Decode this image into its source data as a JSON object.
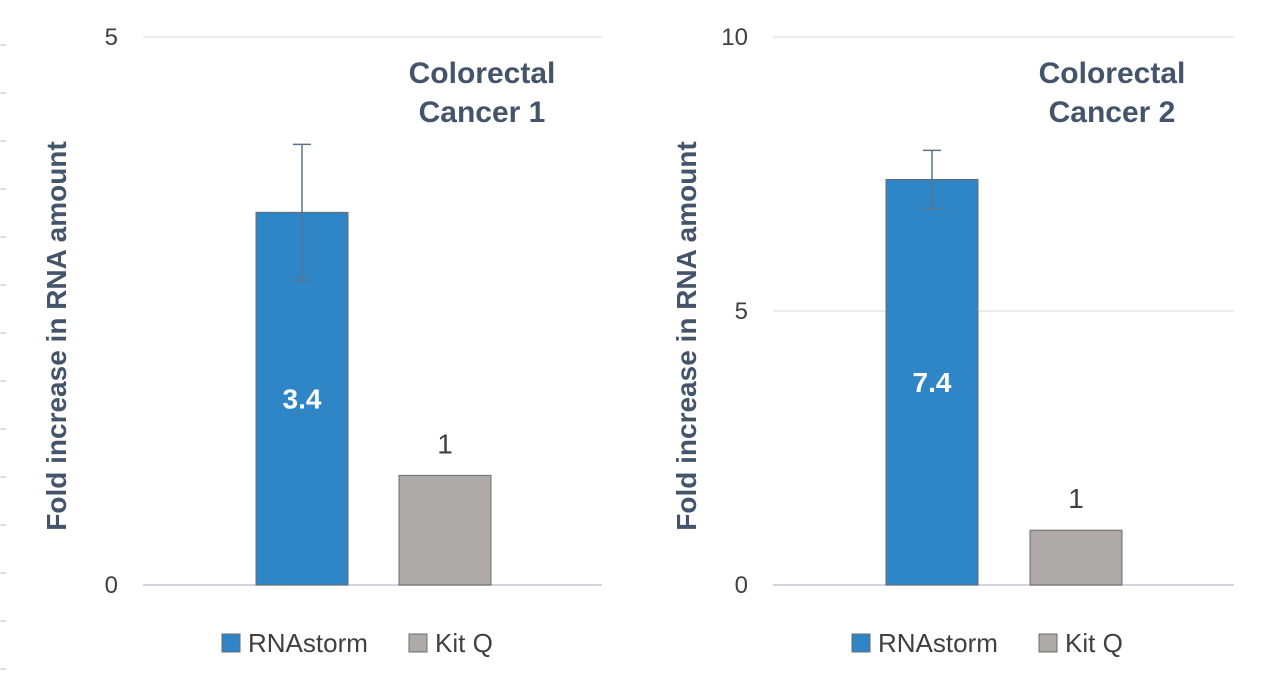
{
  "chart_data": [
    {
      "type": "bar",
      "title": [
        "Colorectal",
        "Cancer 1"
      ],
      "ylabel": "Fold increase in RNA amount",
      "xlabel": "",
      "ylim": [
        0,
        5
      ],
      "yticks": [
        "0",
        "5"
      ],
      "grid": true,
      "legend_position": "bottom",
      "categories": [
        "RNAstorm",
        "Kit Q"
      ],
      "values": [
        3.4,
        1
      ],
      "data_labels": [
        "3.4",
        "1"
      ],
      "error_bars": [
        0.62,
        null
      ],
      "colors": [
        "#2e86c7",
        "#aeaaaa"
      ]
    },
    {
      "type": "bar",
      "title": [
        "Colorectal",
        "Cancer 2"
      ],
      "ylabel": "Fold increase in RNA amount",
      "xlabel": "",
      "ylim": [
        0,
        10
      ],
      "yticks": [
        "0",
        "5",
        "10"
      ],
      "grid": true,
      "legend_position": "bottom",
      "categories": [
        "RNAstorm",
        "Kit Q"
      ],
      "values": [
        7.4,
        1
      ],
      "data_labels": [
        "7.4",
        "1"
      ],
      "error_bars": [
        0.53,
        null
      ],
      "colors": [
        "#2e86c7",
        "#aeaaaa"
      ]
    }
  ],
  "legend": [
    {
      "label": "RNAstorm",
      "color": "#2e86c7"
    },
    {
      "label": "Kit Q",
      "color": "#aeaaaa"
    }
  ]
}
